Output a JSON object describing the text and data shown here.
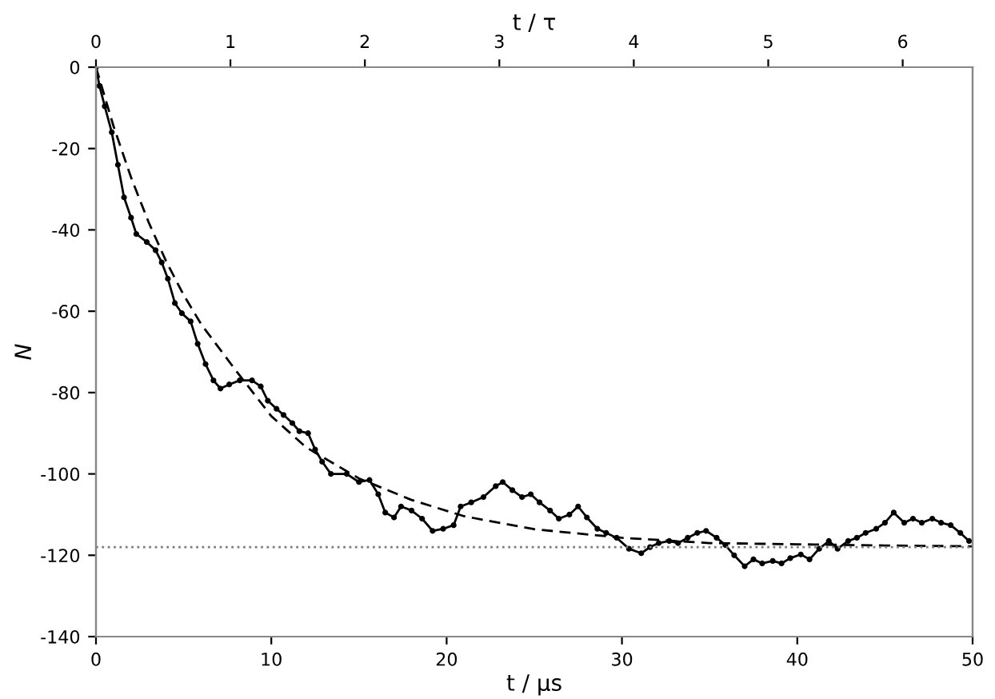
{
  "chart_data": {
    "type": "line",
    "xlabel": "t / μs",
    "ylabel": "N",
    "x2label": "t / τ",
    "xlim": [
      0,
      50
    ],
    "xticks": [
      0,
      10,
      20,
      30,
      40,
      50
    ],
    "ylim": [
      -140,
      0
    ],
    "yticks": [
      -140,
      -120,
      -100,
      -80,
      -60,
      -40,
      -20,
      0
    ],
    "x2lim": [
      0,
      6.52
    ],
    "x2ticks": [
      0,
      1,
      2,
      3,
      4,
      5,
      6
    ],
    "grid": false,
    "legend": false,
    "series": [
      {
        "color": "#000000",
        "marker": "circle",
        "line_style": "solid",
        "x": [
          0,
          0.2,
          0.5,
          0.9,
          1.25,
          1.6,
          2,
          2.3,
          2.9,
          3.4,
          3.75,
          4.1,
          4.5,
          4.9,
          5.4,
          5.8,
          6.25,
          6.7,
          7.1,
          7.6,
          8.2,
          8.9,
          9.4,
          9.8,
          10.3,
          10.7,
          11.2,
          11.6,
          12.1,
          12.5,
          12.9,
          13.4,
          14.3,
          15,
          15.6,
          16.1,
          16.5,
          17,
          17.4,
          18,
          18.6,
          19.2,
          19.8,
          20.4,
          20.8,
          21.4,
          22.1,
          22.8,
          23.2,
          23.75,
          24.3,
          24.8,
          25.3,
          25.9,
          26.4,
          27,
          27.5,
          28,
          28.6,
          29.1,
          29.7,
          30.4,
          31.1,
          31.6,
          32.1,
          32.7,
          33.2,
          33.75,
          34.3,
          34.8,
          35.4,
          35.9,
          36.4,
          37,
          37.5,
          38,
          38.6,
          39.1,
          39.6,
          40.2,
          40.7,
          41.25,
          41.8,
          42.3,
          42.9,
          43.4,
          43.9,
          44.5,
          45,
          45.5,
          46.1,
          46.6,
          47.1,
          47.7,
          48.2,
          48.75,
          49.3,
          49.8
        ],
        "values": [
          0,
          -4.6,
          -9.6,
          -16,
          -24,
          -32,
          -37,
          -41,
          -43,
          -45,
          -48,
          -52,
          -58,
          -60.5,
          -62.5,
          -68,
          -73,
          -77,
          -79,
          -78,
          -77,
          -77,
          -78.5,
          -82,
          -84,
          -85.5,
          -87.5,
          -89.5,
          -90,
          -94,
          -97,
          -100,
          -100,
          -102,
          -101.5,
          -105,
          -109.5,
          -110.7,
          -108,
          -109,
          -111,
          -114,
          -113.5,
          -112.6,
          -108,
          -107,
          -105.7,
          -103,
          -102,
          -104,
          -105.7,
          -105,
          -107,
          -109,
          -111,
          -110,
          -108,
          -110.7,
          -113.5,
          -114.5,
          -115.7,
          -118.4,
          -119.5,
          -118,
          -117,
          -116.5,
          -117,
          -115.7,
          -114.5,
          -114,
          -115.7,
          -117.5,
          -120,
          -122.7,
          -121,
          -122,
          -121.4,
          -122,
          -120.7,
          -119.8,
          -121,
          -118.4,
          -116.5,
          -118.4,
          -116.5,
          -115.7,
          -114.5,
          -113.5,
          -112,
          -109.5,
          -112,
          -111,
          -112,
          -111,
          -112,
          -112.6,
          -114.5,
          -116.5
        ]
      },
      {
        "color": "#000000",
        "marker": "none",
        "line_style": "dashed",
        "x": [
          0,
          1,
          2,
          3,
          4,
          5,
          6,
          8,
          10,
          12,
          15,
          18,
          21,
          25,
          30,
          35,
          40,
          45,
          50
        ],
        "values": [
          0,
          -14.5,
          -27.1,
          -38.1,
          -47.7,
          -56.0,
          -63.2,
          -74.7,
          -85.8,
          -93.5,
          -101.1,
          -106.4,
          -110.4,
          -113.6,
          -115.7,
          -117,
          -117.3,
          -117.6,
          -117.8
        ]
      }
    ],
    "ref_lines": [
      {
        "axis": "y",
        "value": -118,
        "color": "#708090",
        "line_style": "dotted"
      }
    ]
  }
}
